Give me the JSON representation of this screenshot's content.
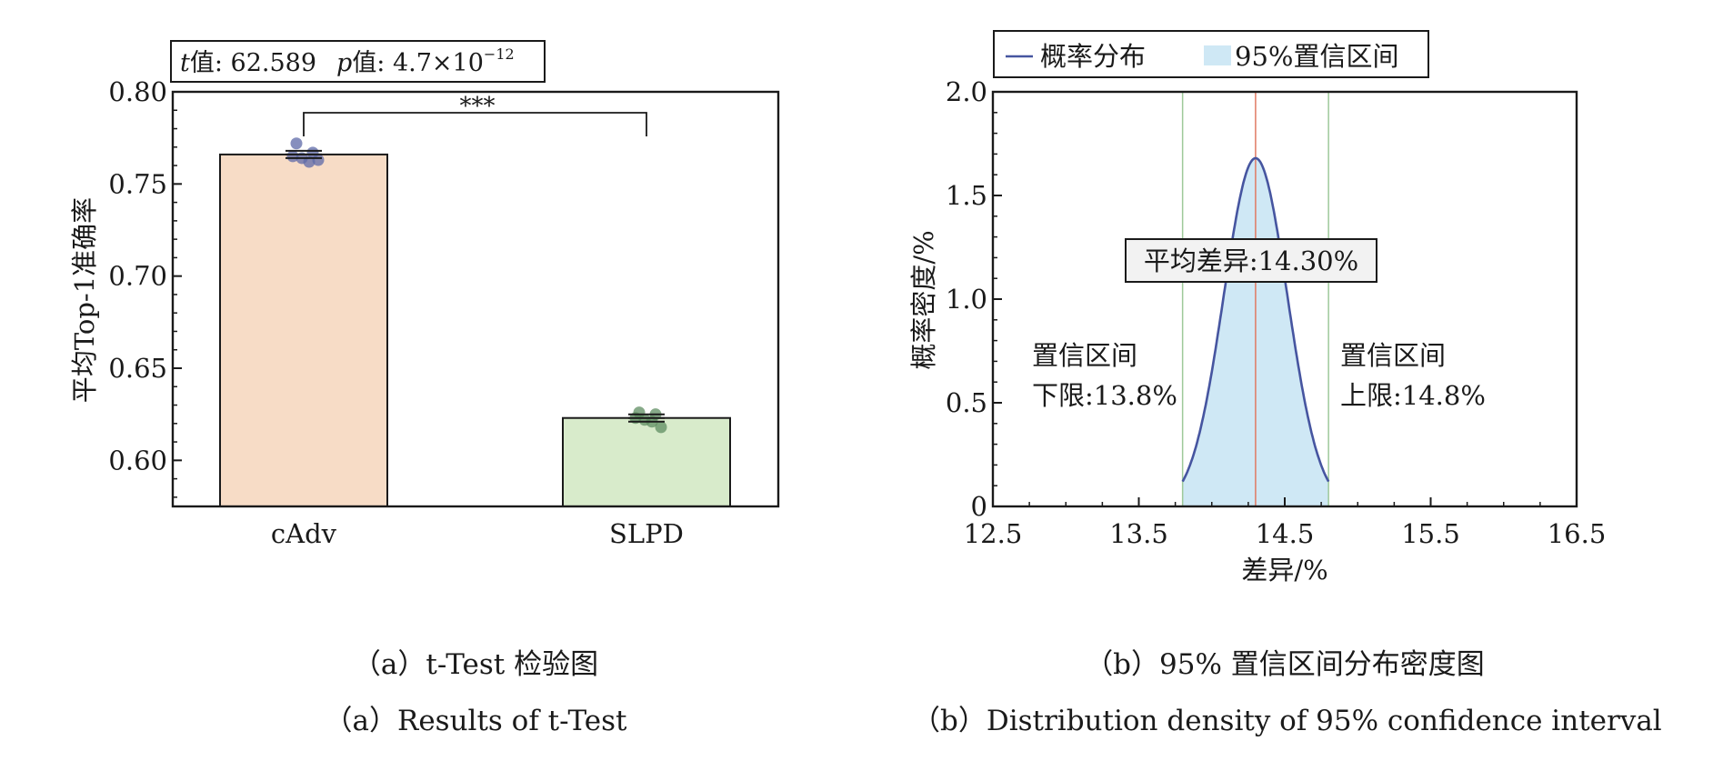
{
  "colors": {
    "bar_cadv": "#f7dcc6",
    "bar_slpd": "#d8ebcb",
    "dots_cadv": "#5e6aa8",
    "dots_slpd": "#5f8e62",
    "curve": "#4655a0",
    "ci_fill": "#cfe8f5",
    "ci_lines": "#9ec99a",
    "mean_line": "#e07a63"
  },
  "chart_data": [
    {
      "type": "bar",
      "title": "",
      "xlabel": "",
      "ylabel": "平均Top-1准确率",
      "ylim": [
        0.575,
        0.8
      ],
      "yticks": [
        "0.80",
        "0.75",
        "0.70",
        "0.65",
        "0.60"
      ],
      "categories": [
        "cAdv",
        "SLPD"
      ],
      "values": [
        0.766,
        0.623
      ],
      "points": [
        [
          0.772,
          0.767,
          0.765,
          0.762,
          0.763,
          0.764
        ],
        [
          0.626,
          0.625,
          0.623,
          0.621,
          0.618,
          0.622
        ]
      ],
      "stats_label": {
        "t_symbol": "t",
        "t_text": "值: 62.589",
        "p_symbol": "p",
        "p_text": "值: 4.7×10",
        "p_exponent": "−12"
      },
      "significance": "***",
      "grid": false
    },
    {
      "type": "area",
      "title": "",
      "xlabel": "差异/%",
      "ylabel": "概率密度/%",
      "xlim": [
        12.5,
        16.5
      ],
      "ylim": [
        0,
        2.0
      ],
      "xticks": [
        "12.5",
        "13.5",
        "14.5",
        "15.5",
        "16.5"
      ],
      "yticks": [
        "0",
        "0.5",
        "1.0",
        "1.5",
        "2.0"
      ],
      "series": [
        {
          "name": "概率分布",
          "mean": 14.3,
          "peak_density": 1.68,
          "x_range": [
            13.8,
            14.8
          ],
          "edge_density": 0.12
        }
      ],
      "legend": {
        "entries": [
          "概率分布",
          "95%置信区间"
        ],
        "position": "top"
      },
      "ci_lower": 13.8,
      "ci_upper": 14.8,
      "mean_label": "平均差异:14.30%",
      "lower_label": [
        "置信区间",
        "下限:13.8%"
      ],
      "upper_label": [
        "置信区间",
        "上限:14.8%"
      ],
      "grid": false
    }
  ],
  "captions": {
    "a_cn": "（a）t-Test 检验图",
    "a_en": "（a）Results of t-Test",
    "b_cn": "（b）95% 置信区间分布密度图",
    "b_en": "（b）Distribution density of 95%  confidence interval"
  }
}
